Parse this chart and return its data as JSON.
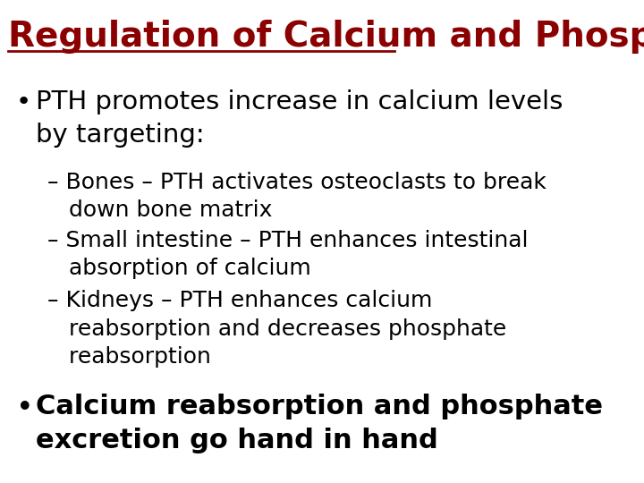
{
  "title": "Regulation of Calcium and Phosphate",
  "title_color": "#8B0000",
  "title_fontsize": 28,
  "background_color": "#FFFFFF",
  "bullet1_text": "PTH promotes increase in calcium levels\nby targeting:",
  "bullet1_fontsize": 21,
  "bullet1_color": "#000000",
  "sub_bullets": [
    "– Bones – PTH activates osteoclasts to break\n   down bone matrix",
    "– Small intestine – PTH enhances intestinal\n   absorption of calcium",
    "– Kidneys – PTH enhances calcium\n   reabsorption and decreases phosphate\n   reabsorption"
  ],
  "sub_bullet_fontsize": 18,
  "sub_bullet_color": "#000000",
  "bullet2_text": "Calcium reabsorption and phosphate\nexcretion go hand in hand",
  "bullet2_fontsize": 22,
  "bullet2_color": "#000000",
  "bullet2_bold": true
}
